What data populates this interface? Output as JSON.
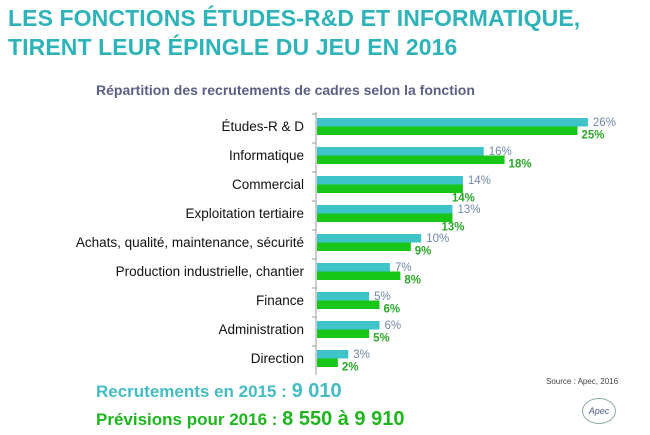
{
  "title_line1": "LES FONCTIONS ÉTUDES-R&D ET INFORMATIQUE,",
  "title_line2": "TIRENT LEUR ÉPINGLE DU JEU EN 2016",
  "chart_data": {
    "type": "bar",
    "orientation": "horizontal",
    "title": "Répartition des recrutements de cadres selon la fonction",
    "categories": [
      "Études-R & D",
      "Informatique",
      "Commercial",
      "Exploitation tertiaire",
      "Achats, qualité, maintenance, sécurité",
      "Production industrielle, chantier",
      "Finance",
      "Administration",
      "Direction"
    ],
    "series": [
      {
        "key": "2015",
        "values": [
          26,
          16,
          14,
          13,
          10,
          7,
          5,
          6,
          3
        ],
        "color": "#3ec4c8",
        "label_color": "#6f88aa"
      },
      {
        "key": "2016",
        "values": [
          25,
          18,
          14,
          13,
          9,
          8,
          6,
          5,
          2
        ],
        "color": "#17c617",
        "label_color": "#2aa82a"
      }
    ],
    "value_suffix": "%",
    "grid": false
  },
  "summary": {
    "line2015_label": "Recrutements en 2015 : ",
    "line2015_value": "9 010",
    "line2016_label": "Prévisions pour 2016 : ",
    "line2016_value": "8 550 à  9 910"
  },
  "source": "Source : Apec, 2016",
  "logo_text": "Apec"
}
